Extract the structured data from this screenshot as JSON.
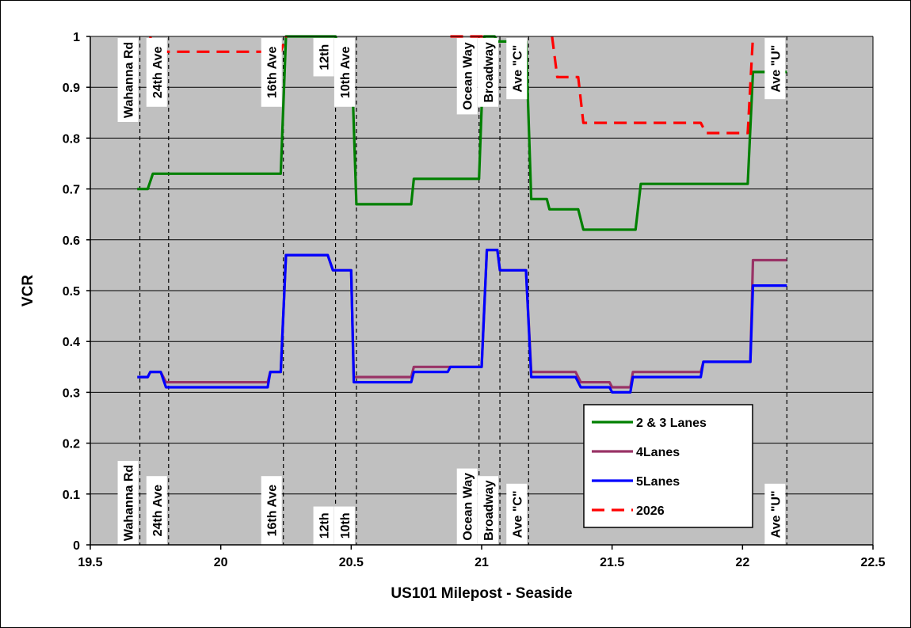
{
  "chart_data": {
    "type": "line",
    "title": "",
    "xlabel": "US101 Milepost - Seaside",
    "ylabel": "VCR",
    "xlim": [
      19.5,
      22.5
    ],
    "ylim": [
      0,
      1
    ],
    "x_ticks": [
      "19.5",
      "20",
      "20.5",
      "21",
      "21.5",
      "22",
      "22.5"
    ],
    "y_ticks": [
      "0",
      "0.1",
      "0.2",
      "0.3",
      "0.4",
      "0.5",
      "0.6",
      "0.7",
      "0.8",
      "0.9",
      "1"
    ],
    "grid": "horizontal",
    "background": "#c0c0c0",
    "legend_position": "lower-right",
    "series": [
      {
        "name": "2 & 3 Lanes",
        "color": "#008000",
        "dash": "solid",
        "points": [
          [
            19.68,
            0.7
          ],
          [
            19.72,
            0.7
          ],
          [
            19.74,
            0.73
          ],
          [
            20.23,
            0.73
          ],
          [
            20.25,
            1.0
          ],
          [
            20.44,
            1.0
          ],
          [
            20.45,
            0.98
          ],
          [
            20.5,
            0.98
          ],
          [
            20.52,
            0.67
          ],
          [
            20.73,
            0.67
          ],
          [
            20.74,
            0.72
          ],
          [
            20.99,
            0.72
          ],
          [
            21.01,
            1.0
          ],
          [
            21.05,
            1.0
          ],
          [
            21.06,
            0.99
          ],
          [
            21.17,
            0.99
          ],
          [
            21.19,
            0.68
          ],
          [
            21.25,
            0.68
          ],
          [
            21.26,
            0.66
          ],
          [
            21.37,
            0.66
          ],
          [
            21.39,
            0.62
          ],
          [
            21.59,
            0.62
          ],
          [
            21.61,
            0.71
          ],
          [
            22.02,
            0.71
          ],
          [
            22.04,
            0.93
          ],
          [
            22.17,
            0.93
          ]
        ]
      },
      {
        "name": "4Lanes",
        "color": "#993366",
        "dash": "solid",
        "points": [
          [
            19.68,
            0.33
          ],
          [
            19.72,
            0.33
          ],
          [
            19.73,
            0.34
          ],
          [
            19.77,
            0.34
          ],
          [
            19.79,
            0.32
          ],
          [
            20.18,
            0.32
          ],
          [
            20.19,
            0.34
          ],
          [
            20.23,
            0.34
          ],
          [
            20.25,
            0.57
          ],
          [
            20.41,
            0.57
          ],
          [
            20.43,
            0.54
          ],
          [
            20.5,
            0.54
          ],
          [
            20.51,
            0.33
          ],
          [
            20.73,
            0.33
          ],
          [
            20.74,
            0.35
          ],
          [
            20.87,
            0.35
          ],
          [
            20.88,
            0.35
          ],
          [
            21.0,
            0.35
          ],
          [
            21.02,
            0.58
          ],
          [
            21.06,
            0.58
          ],
          [
            21.07,
            0.54
          ],
          [
            21.17,
            0.54
          ],
          [
            21.19,
            0.34
          ],
          [
            21.36,
            0.34
          ],
          [
            21.38,
            0.32
          ],
          [
            21.49,
            0.32
          ],
          [
            21.5,
            0.31
          ],
          [
            21.57,
            0.31
          ],
          [
            21.58,
            0.34
          ],
          [
            21.84,
            0.34
          ],
          [
            21.85,
            0.36
          ],
          [
            22.03,
            0.36
          ],
          [
            22.04,
            0.56
          ],
          [
            22.17,
            0.56
          ]
        ]
      },
      {
        "name": "5Lanes",
        "color": "#0000ff",
        "dash": "solid",
        "points": [
          [
            19.68,
            0.33
          ],
          [
            19.72,
            0.33
          ],
          [
            19.73,
            0.34
          ],
          [
            19.77,
            0.34
          ],
          [
            19.79,
            0.31
          ],
          [
            20.18,
            0.31
          ],
          [
            20.19,
            0.34
          ],
          [
            20.23,
            0.34
          ],
          [
            20.25,
            0.57
          ],
          [
            20.41,
            0.57
          ],
          [
            20.43,
            0.54
          ],
          [
            20.5,
            0.54
          ],
          [
            20.51,
            0.32
          ],
          [
            20.73,
            0.32
          ],
          [
            20.74,
            0.34
          ],
          [
            20.87,
            0.34
          ],
          [
            20.88,
            0.35
          ],
          [
            21.0,
            0.35
          ],
          [
            21.02,
            0.58
          ],
          [
            21.06,
            0.58
          ],
          [
            21.07,
            0.54
          ],
          [
            21.17,
            0.54
          ],
          [
            21.19,
            0.33
          ],
          [
            21.36,
            0.33
          ],
          [
            21.38,
            0.31
          ],
          [
            21.49,
            0.31
          ],
          [
            21.5,
            0.3
          ],
          [
            21.57,
            0.3
          ],
          [
            21.58,
            0.33
          ],
          [
            21.84,
            0.33
          ],
          [
            21.85,
            0.36
          ],
          [
            22.03,
            0.36
          ],
          [
            22.04,
            0.51
          ],
          [
            22.17,
            0.51
          ]
        ]
      },
      {
        "name": "2026",
        "color": "#ff0000",
        "dash": "dashed",
        "segments": [
          [
            [
              19.73,
              1.0
            ],
            [
              19.74,
              0.97
            ],
            [
              20.23,
              0.97
            ],
            [
              20.25,
              1.0
            ]
          ],
          [
            [
              20.88,
              1.0
            ],
            [
              21.01,
              1.0
            ]
          ],
          [
            [
              21.27,
              1.0
            ],
            [
              21.29,
              0.92
            ],
            [
              21.37,
              0.92
            ],
            [
              21.39,
              0.83
            ],
            [
              21.84,
              0.83
            ],
            [
              21.86,
              0.81
            ],
            [
              22.02,
              0.81
            ],
            [
              22.04,
              1.0
            ]
          ]
        ]
      }
    ],
    "road_markers": [
      {
        "x": 19.69,
        "label": "Wahanna Rd"
      },
      {
        "x": 19.8,
        "label": "24th Ave"
      },
      {
        "x": 20.24,
        "label": "16th Ave"
      },
      {
        "x": 20.44,
        "label": "12th"
      },
      {
        "x": 20.52,
        "label": "10th",
        "top_label": "10th Ave"
      },
      {
        "x": 20.99,
        "label": "Ocean Way"
      },
      {
        "x": 21.07,
        "label": "Broadway"
      },
      {
        "x": 21.18,
        "label": "Ave \"C\""
      },
      {
        "x": 22.17,
        "label": "Ave \"U\""
      }
    ]
  }
}
